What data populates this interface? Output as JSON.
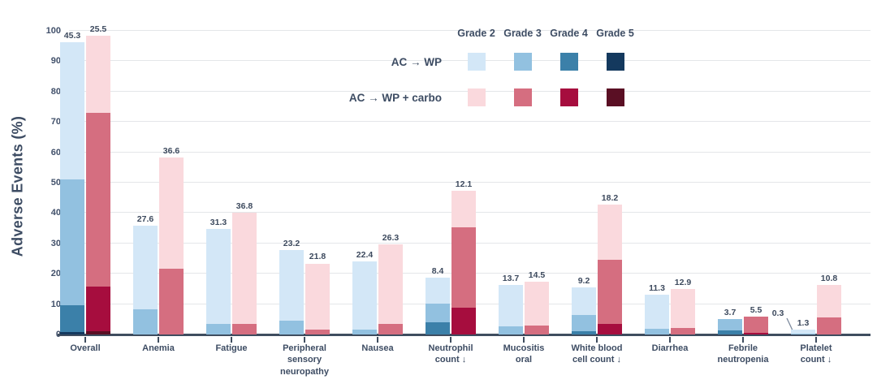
{
  "y_axis": {
    "title": "Adverse Events (%)",
    "ticks": [
      0,
      10,
      20,
      30,
      40,
      50,
      60,
      70,
      80,
      90,
      100
    ]
  },
  "legend": {
    "grade_labels": [
      "Grade 2",
      "Grade 3",
      "Grade 4",
      "Grade 5"
    ],
    "series_labels": {
      "wp": "AC → WP",
      "carbo": "AC → WP + carbo"
    }
  },
  "colors": {
    "wp": {
      "2": "#d3e7f7",
      "3": "#92c1e0",
      "4": "#3b80a9",
      "5": "#14395e"
    },
    "carbo": {
      "2": "#fad9dd",
      "3": "#d56e80",
      "4": "#a60d3e",
      "5": "#5a0f24"
    },
    "label_dark": "#3d4a5e",
    "label_white": "#ffffff",
    "axis_text": "#3d4c63",
    "gridline": "#e4e6e9",
    "baseline": "#3f4d5f"
  },
  "chart_data": {
    "type": "bar",
    "stacked": true,
    "grouped": true,
    "ylim": [
      0,
      100
    ],
    "grid": true,
    "legend_position": "top-right",
    "note": "segments listed bottom-to-top as [grade, value, optional flag]",
    "categories": [
      {
        "label": "Overall",
        "wp": [
          [
            5,
            0.8,
            "white"
          ],
          [
            4,
            8.9
          ],
          [
            3,
            41.3
          ],
          [
            2,
            45.3
          ]
        ],
        "carbo": [
          [
            5,
            1.1,
            "white"
          ],
          [
            4,
            14.7
          ],
          [
            3,
            57.1
          ],
          [
            2,
            25.5
          ]
        ]
      },
      {
        "label": "Anemia",
        "wp": [
          [
            3,
            8.2
          ],
          [
            2,
            27.6
          ]
        ],
        "carbo": [
          [
            3,
            21.6
          ],
          [
            2,
            36.6
          ]
        ]
      },
      {
        "label": "Fatigue",
        "wp": [
          [
            3,
            3.4
          ],
          [
            2,
            31.3
          ]
        ],
        "carbo": [
          [
            3,
            3.4
          ],
          [
            2,
            36.8
          ]
        ]
      },
      {
        "label": "Peripheral\nsensory\nneuropathy",
        "wp": [
          [
            3,
            4.5
          ],
          [
            2,
            23.2
          ]
        ],
        "carbo": [
          [
            3,
            1.6
          ],
          [
            2,
            21.8
          ]
        ]
      },
      {
        "label": "Nausea",
        "wp": [
          [
            3,
            1.6
          ],
          [
            2,
            22.4
          ]
        ],
        "carbo": [
          [
            3,
            3.4
          ],
          [
            2,
            26.3
          ]
        ]
      },
      {
        "label": "Neutrophil\ncount ↓",
        "wp": [
          [
            4,
            3.9
          ],
          [
            3,
            6.3
          ],
          [
            2,
            8.4
          ]
        ],
        "carbo": [
          [
            4,
            8.7
          ],
          [
            3,
            26.6
          ],
          [
            2,
            12.1
          ]
        ]
      },
      {
        "label": "Mucositis\noral",
        "wp": [
          [
            3,
            2.6
          ],
          [
            2,
            13.7
          ]
        ],
        "carbo": [
          [
            3,
            2.9
          ],
          [
            2,
            14.5
          ]
        ]
      },
      {
        "label": "White blood\ncell count ↓",
        "wp": [
          [
            4,
            1.1
          ],
          [
            3,
            5.3
          ],
          [
            2,
            9.2
          ]
        ],
        "carbo": [
          [
            4,
            3.4
          ],
          [
            3,
            21.1
          ],
          [
            2,
            18.2
          ]
        ]
      },
      {
        "label": "Diarrhea",
        "wp": [
          [
            3,
            1.8
          ],
          [
            2,
            11.3
          ]
        ],
        "carbo": [
          [
            3,
            2.1
          ],
          [
            2,
            12.9
          ]
        ]
      },
      {
        "label": "Febrile\nneutropenia",
        "wp": [
          [
            4,
            1.3
          ],
          [
            3,
            3.7
          ]
        ],
        "carbo": [
          [
            4,
            0.5,
            "white"
          ],
          [
            3,
            5.5
          ]
        ]
      },
      {
        "label": "Platelet\ncount ↓",
        "wp": [
          [
            3,
            0.3,
            "callout"
          ],
          [
            2,
            1.3
          ]
        ],
        "carbo": [
          [
            3,
            5.5
          ],
          [
            2,
            10.8
          ]
        ]
      }
    ]
  }
}
